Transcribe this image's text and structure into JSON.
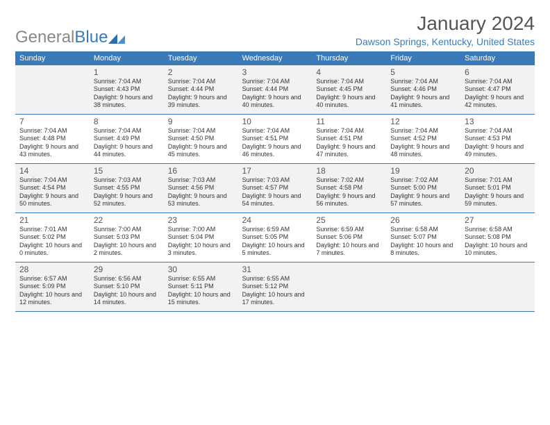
{
  "logo": {
    "general": "General",
    "blue": "Blue"
  },
  "title": "January 2024",
  "location": "Dawson Springs, Kentucky, United States",
  "colors": {
    "header_bg": "#3b7ab8",
    "row_alt_bg": "#f2f2f2",
    "text": "#333333",
    "title_text": "#555555",
    "location_text": "#3b7ab8"
  },
  "weekdays": [
    "Sunday",
    "Monday",
    "Tuesday",
    "Wednesday",
    "Thursday",
    "Friday",
    "Saturday"
  ],
  "start_offset": 1,
  "days": [
    {
      "n": "1",
      "sunrise": "7:04 AM",
      "sunset": "4:43 PM",
      "daylight": "9 hours and 38 minutes."
    },
    {
      "n": "2",
      "sunrise": "7:04 AM",
      "sunset": "4:44 PM",
      "daylight": "9 hours and 39 minutes."
    },
    {
      "n": "3",
      "sunrise": "7:04 AM",
      "sunset": "4:44 PM",
      "daylight": "9 hours and 40 minutes."
    },
    {
      "n": "4",
      "sunrise": "7:04 AM",
      "sunset": "4:45 PM",
      "daylight": "9 hours and 40 minutes."
    },
    {
      "n": "5",
      "sunrise": "7:04 AM",
      "sunset": "4:46 PM",
      "daylight": "9 hours and 41 minutes."
    },
    {
      "n": "6",
      "sunrise": "7:04 AM",
      "sunset": "4:47 PM",
      "daylight": "9 hours and 42 minutes."
    },
    {
      "n": "7",
      "sunrise": "7:04 AM",
      "sunset": "4:48 PM",
      "daylight": "9 hours and 43 minutes."
    },
    {
      "n": "8",
      "sunrise": "7:04 AM",
      "sunset": "4:49 PM",
      "daylight": "9 hours and 44 minutes."
    },
    {
      "n": "9",
      "sunrise": "7:04 AM",
      "sunset": "4:50 PM",
      "daylight": "9 hours and 45 minutes."
    },
    {
      "n": "10",
      "sunrise": "7:04 AM",
      "sunset": "4:51 PM",
      "daylight": "9 hours and 46 minutes."
    },
    {
      "n": "11",
      "sunrise": "7:04 AM",
      "sunset": "4:51 PM",
      "daylight": "9 hours and 47 minutes."
    },
    {
      "n": "12",
      "sunrise": "7:04 AM",
      "sunset": "4:52 PM",
      "daylight": "9 hours and 48 minutes."
    },
    {
      "n": "13",
      "sunrise": "7:04 AM",
      "sunset": "4:53 PM",
      "daylight": "9 hours and 49 minutes."
    },
    {
      "n": "14",
      "sunrise": "7:04 AM",
      "sunset": "4:54 PM",
      "daylight": "9 hours and 50 minutes."
    },
    {
      "n": "15",
      "sunrise": "7:03 AM",
      "sunset": "4:55 PM",
      "daylight": "9 hours and 52 minutes."
    },
    {
      "n": "16",
      "sunrise": "7:03 AM",
      "sunset": "4:56 PM",
      "daylight": "9 hours and 53 minutes."
    },
    {
      "n": "17",
      "sunrise": "7:03 AM",
      "sunset": "4:57 PM",
      "daylight": "9 hours and 54 minutes."
    },
    {
      "n": "18",
      "sunrise": "7:02 AM",
      "sunset": "4:58 PM",
      "daylight": "9 hours and 56 minutes."
    },
    {
      "n": "19",
      "sunrise": "7:02 AM",
      "sunset": "5:00 PM",
      "daylight": "9 hours and 57 minutes."
    },
    {
      "n": "20",
      "sunrise": "7:01 AM",
      "sunset": "5:01 PM",
      "daylight": "9 hours and 59 minutes."
    },
    {
      "n": "21",
      "sunrise": "7:01 AM",
      "sunset": "5:02 PM",
      "daylight": "10 hours and 0 minutes."
    },
    {
      "n": "22",
      "sunrise": "7:00 AM",
      "sunset": "5:03 PM",
      "daylight": "10 hours and 2 minutes."
    },
    {
      "n": "23",
      "sunrise": "7:00 AM",
      "sunset": "5:04 PM",
      "daylight": "10 hours and 3 minutes."
    },
    {
      "n": "24",
      "sunrise": "6:59 AM",
      "sunset": "5:05 PM",
      "daylight": "10 hours and 5 minutes."
    },
    {
      "n": "25",
      "sunrise": "6:59 AM",
      "sunset": "5:06 PM",
      "daylight": "10 hours and 7 minutes."
    },
    {
      "n": "26",
      "sunrise": "6:58 AM",
      "sunset": "5:07 PM",
      "daylight": "10 hours and 8 minutes."
    },
    {
      "n": "27",
      "sunrise": "6:58 AM",
      "sunset": "5:08 PM",
      "daylight": "10 hours and 10 minutes."
    },
    {
      "n": "28",
      "sunrise": "6:57 AM",
      "sunset": "5:09 PM",
      "daylight": "10 hours and 12 minutes."
    },
    {
      "n": "29",
      "sunrise": "6:56 AM",
      "sunset": "5:10 PM",
      "daylight": "10 hours and 14 minutes."
    },
    {
      "n": "30",
      "sunrise": "6:55 AM",
      "sunset": "5:11 PM",
      "daylight": "10 hours and 15 minutes."
    },
    {
      "n": "31",
      "sunrise": "6:55 AM",
      "sunset": "5:12 PM",
      "daylight": "10 hours and 17 minutes."
    }
  ],
  "labels": {
    "sunrise": "Sunrise:",
    "sunset": "Sunset:",
    "daylight": "Daylight:"
  }
}
